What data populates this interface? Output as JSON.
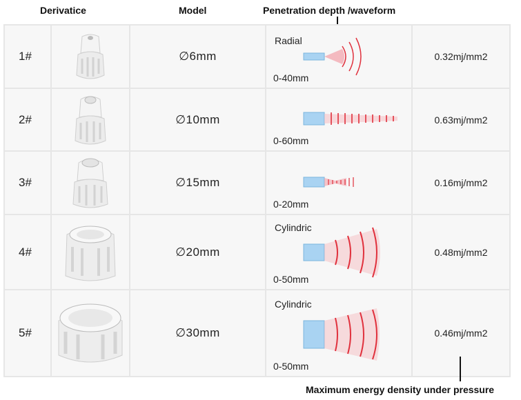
{
  "headers": {
    "derivative": "Derivatice",
    "model": "Model",
    "penetration": "Penetration depth /waveform"
  },
  "footer_label": "Maximum energy density under pressure",
  "rows": [
    {
      "num": "1#",
      "model": "∅6mm",
      "wave_title": "Radial",
      "range": "0-40mm",
      "energy": "0.32mj/mm2"
    },
    {
      "num": "2#",
      "model": "∅10mm",
      "wave_title": "",
      "range": "0-60mm",
      "energy": "0.63mj/mm2"
    },
    {
      "num": "3#",
      "model": "∅15mm",
      "wave_title": "",
      "range": "0-20mm",
      "energy": "0.16mj/mm2"
    },
    {
      "num": "4#",
      "model": "∅20mm",
      "wave_title": "Cylindric",
      "range": "0-50mm",
      "energy": "0.48mj/mm2"
    },
    {
      "num": "5#",
      "model": "∅30mm",
      "wave_title": "Cylindric",
      "range": "0-50mm",
      "energy": "0.46mj/mm2"
    }
  ],
  "colors": {
    "wave_red": "#e0303c",
    "emitter_blue": "#a9d3f2",
    "tip_white": "#f2f2f2"
  }
}
